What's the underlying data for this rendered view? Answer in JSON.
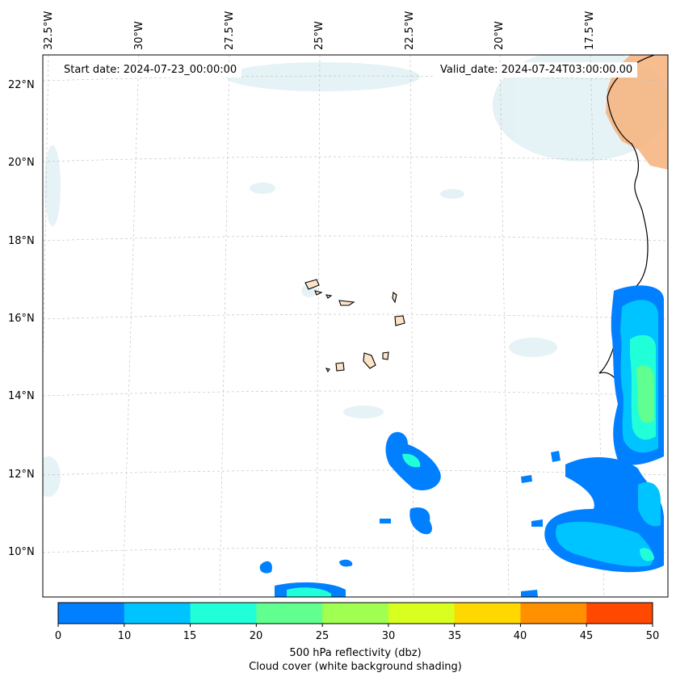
{
  "map": {
    "start_date_text": "Start date: 2024-07-23_00:00:00",
    "valid_date_text": "Valid_date: 2024-07-24T03:00:00.00",
    "lon_labels": [
      "32.5°W",
      "30°W",
      "27.5°W",
      "25°W",
      "22.5°W",
      "20°W",
      "17.5°W"
    ],
    "lat_labels": [
      "22°N",
      "20°N",
      "18°N",
      "16°N",
      "14°N",
      "12°N",
      "10°N"
    ]
  },
  "colorbar": {
    "ticks": [
      "0",
      "10",
      "15",
      "20",
      "25",
      "30",
      "35",
      "40",
      "45",
      "50"
    ],
    "colors": [
      "#0080ff",
      "#00c4ff",
      "#20ffd8",
      "#60ff90",
      "#a0ff50",
      "#d8ff20",
      "#ffd800",
      "#ff9000",
      "#ff4800"
    ],
    "label_line1": "500 hPa reflectivity (dbz)",
    "label_line2": "Cloud cover (white background shading)"
  }
}
